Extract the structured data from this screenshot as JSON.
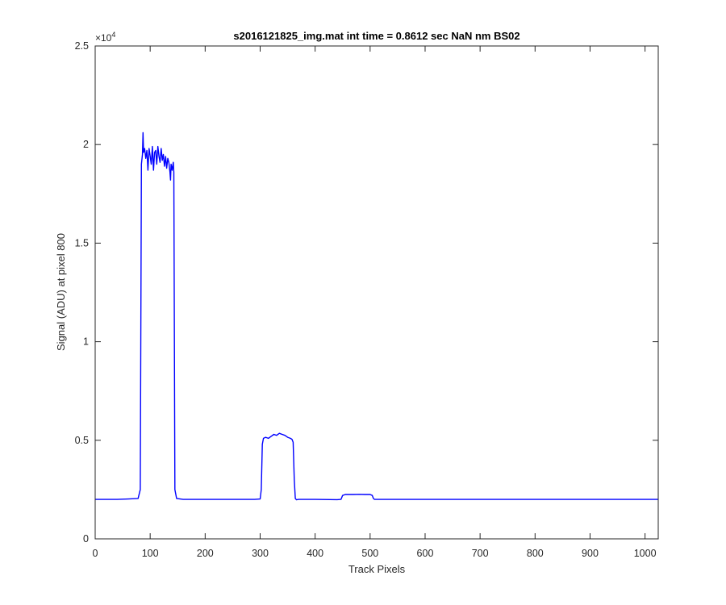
{
  "chart_data": {
    "type": "line",
    "title": "s2016121825_img.mat int time = 0.8612 sec  NaN nm BS02",
    "xlabel": "Track Pixels",
    "ylabel": "Signal (ADU) at pixel 800",
    "y_exponent_label": "×10",
    "y_exponent_power": "4",
    "xlim": [
      0,
      1024
    ],
    "ylim": [
      0,
      25000
    ],
    "x_ticks": [
      0,
      100,
      200,
      300,
      400,
      500,
      600,
      700,
      800,
      900,
      1000
    ],
    "x_tick_labels": [
      "0",
      "100",
      "200",
      "300",
      "400",
      "500",
      "600",
      "700",
      "800",
      "900",
      "1000"
    ],
    "y_ticks": [
      0,
      5000,
      10000,
      15000,
      20000,
      25000
    ],
    "y_tick_labels": [
      "0",
      "0.5",
      "1",
      "1.5",
      "2",
      "2.5"
    ],
    "grid": false,
    "legend": "none",
    "series": [
      {
        "color": "#0000ff",
        "x": [
          0,
          20,
          40,
          60,
          78,
          82,
          84,
          86,
          87,
          88,
          90,
          92,
          94,
          96,
          98,
          100,
          102,
          104,
          106,
          108,
          110,
          112,
          114,
          116,
          118,
          120,
          122,
          124,
          126,
          128,
          130,
          132,
          134,
          136,
          137,
          138,
          140,
          142,
          143,
          145,
          148,
          160,
          200,
          250,
          290,
          300,
          302,
          304,
          306,
          310,
          315,
          320,
          325,
          330,
          335,
          340,
          345,
          350,
          355,
          358,
          360,
          362,
          364,
          366,
          370,
          400,
          440,
          447,
          450,
          455,
          460,
          470,
          480,
          490,
          500,
          504,
          506,
          508,
          520,
          600,
          700,
          800,
          900,
          1000,
          1024
        ],
        "y": [
          2000,
          2000,
          2000,
          2020,
          2050,
          2500,
          19000,
          19500,
          20600,
          19600,
          19800,
          19300,
          19700,
          18700,
          19800,
          19400,
          19000,
          19900,
          18700,
          19600,
          19700,
          19000,
          19900,
          19400,
          19100,
          19800,
          19200,
          19500,
          18900,
          19400,
          18800,
          19300,
          19100,
          18600,
          18200,
          19000,
          18700,
          19100,
          18600,
          2500,
          2050,
          2000,
          2000,
          2000,
          2000,
          2020,
          2500,
          4800,
          5100,
          5150,
          5100,
          5200,
          5300,
          5250,
          5350,
          5300,
          5250,
          5150,
          5100,
          5050,
          4900,
          3000,
          2050,
          1980,
          2000,
          2000,
          1990,
          2000,
          2200,
          2250,
          2250,
          2250,
          2260,
          2250,
          2250,
          2200,
          2050,
          2000,
          2000,
          2000,
          2000,
          2000,
          2000,
          2000,
          2000
        ]
      }
    ]
  }
}
